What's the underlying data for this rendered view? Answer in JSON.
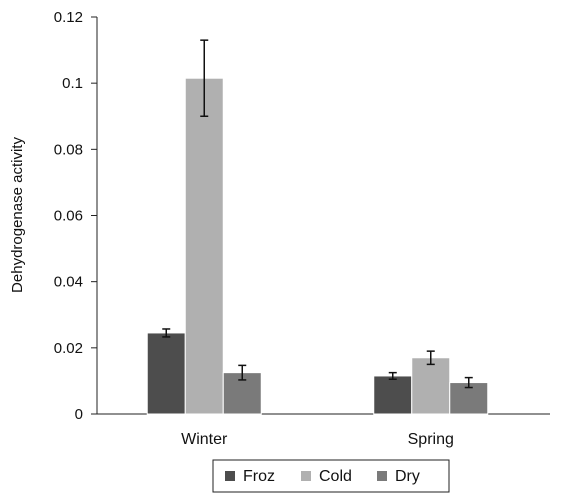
{
  "chart_data": {
    "type": "bar",
    "title": "",
    "xlabel": "",
    "ylabel": "Dehydrogenase activity",
    "ylim": [
      0,
      0.12
    ],
    "yticks": [
      "0",
      "0.02",
      "0.04",
      "0.06",
      "0.08",
      "0.1",
      "0.12"
    ],
    "categories": [
      "Winter",
      "Spring"
    ],
    "series": [
      {
        "name": "Froz",
        "color": "#4d4d4d",
        "values": [
          0.0245,
          0.0115
        ],
        "errors": [
          0.0012,
          0.001
        ]
      },
      {
        "name": "Cold",
        "color": "#b0b0b0",
        "values": [
          0.1015,
          0.017
        ],
        "errors": [
          0.0115,
          0.002
        ]
      },
      {
        "name": "Dry",
        "color": "#7a7a7a",
        "values": [
          0.0125,
          0.0095
        ],
        "errors": [
          0.0022,
          0.0015
        ]
      }
    ],
    "grid": false,
    "error_bars": true,
    "legend_position": "bottom"
  }
}
